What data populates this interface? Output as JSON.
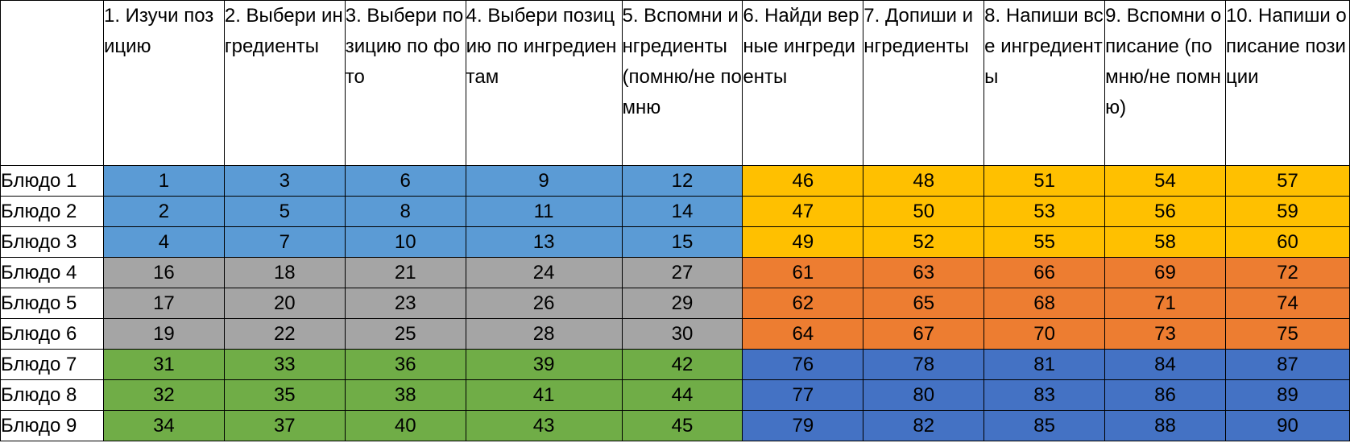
{
  "colors": {
    "light_blue": "#5b9bd5",
    "gold": "#ffc000",
    "gray": "#a5a5a5",
    "orange": "#ed7d31",
    "green": "#70ad47",
    "blue": "#4472c4"
  },
  "headers": [
    "1. Изучи позицию",
    "2. Выбери ингредиенты",
    "3. Выбери позицию по фото",
    "4. Выбери позицию по ингредиентам",
    "5. Вспомни ингредиенты (помню/не помню",
    "6. Найди верные ингредиенты",
    "7. Допиши ингредиенты",
    "8. Напиши все ингредиенты",
    "9. Вспомни описание (помню/не помню)",
    "10. Напиши описание позиции"
  ],
  "rows": [
    {
      "label": "Блюдо 1",
      "left_color": "light_blue",
      "right_color": "gold",
      "values": [
        "1",
        "3",
        "6",
        "9",
        "12",
        "46",
        "48",
        "51",
        "54",
        "57"
      ]
    },
    {
      "label": "Блюдо 2",
      "left_color": "light_blue",
      "right_color": "gold",
      "values": [
        "2",
        "5",
        "8",
        "11",
        "14",
        "47",
        "50",
        "53",
        "56",
        "59"
      ]
    },
    {
      "label": "Блюдо 3",
      "left_color": "light_blue",
      "right_color": "gold",
      "values": [
        "4",
        "7",
        "10",
        "13",
        "15",
        "49",
        "52",
        "55",
        "58",
        "60"
      ]
    },
    {
      "label": "Блюдо 4",
      "left_color": "gray",
      "right_color": "orange",
      "values": [
        "16",
        "18",
        "21",
        "24",
        "27",
        "61",
        "63",
        "66",
        "69",
        "72"
      ]
    },
    {
      "label": "Блюдо 5",
      "left_color": "gray",
      "right_color": "orange",
      "values": [
        "17",
        "20",
        "23",
        "26",
        "29",
        "62",
        "65",
        "68",
        "71",
        "74"
      ]
    },
    {
      "label": "Блюдо 6",
      "left_color": "gray",
      "right_color": "orange",
      "values": [
        "19",
        "22",
        "25",
        "28",
        "30",
        "64",
        "67",
        "70",
        "73",
        "75"
      ]
    },
    {
      "label": "Блюдо 7",
      "left_color": "green",
      "right_color": "blue",
      "values": [
        "31",
        "33",
        "36",
        "39",
        "42",
        "76",
        "78",
        "81",
        "84",
        "87"
      ]
    },
    {
      "label": "Блюдо 8",
      "left_color": "green",
      "right_color": "blue",
      "values": [
        "32",
        "35",
        "38",
        "41",
        "44",
        "77",
        "80",
        "83",
        "86",
        "89"
      ]
    },
    {
      "label": "Блюдо 9",
      "left_color": "green",
      "right_color": "blue",
      "values": [
        "34",
        "37",
        "40",
        "43",
        "45",
        "79",
        "82",
        "85",
        "88",
        "90"
      ]
    }
  ]
}
